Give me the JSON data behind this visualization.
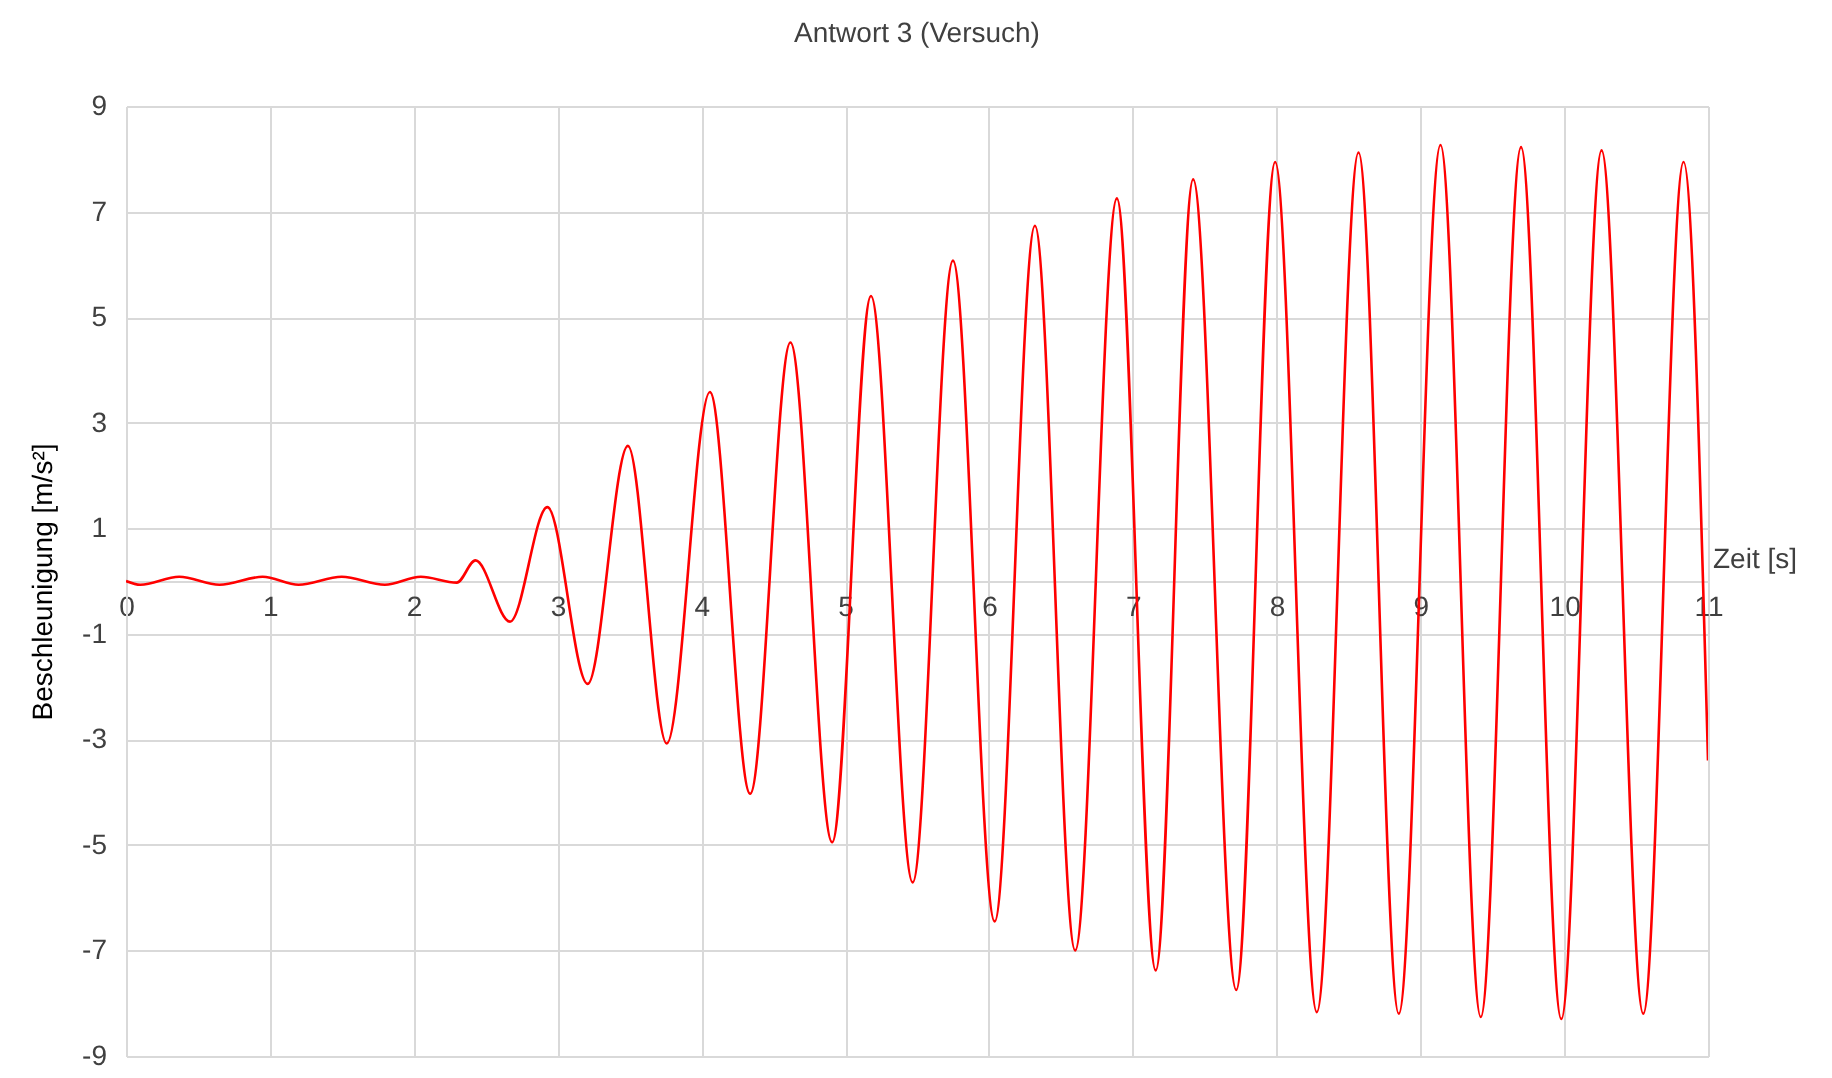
{
  "chart_data": {
    "type": "line",
    "title": "Antwort 3 (Versuch)",
    "xlabel": "Zeit [s]",
    "ylabel": "Beschleunigung [m/s²]",
    "x": [
      0,
      0.1,
      0.37,
      0.65,
      0.95,
      1.2,
      1.5,
      1.8,
      2.05,
      2.3,
      2.43,
      2.67,
      2.93,
      3.21,
      3.49,
      3.76,
      4.06,
      4.34,
      4.62,
      4.91,
      5.18,
      5.47,
      5.75,
      6.04,
      6.32,
      6.6,
      6.89,
      7.16,
      7.42,
      7.72,
      7.99,
      8.28,
      8.57,
      8.85,
      9.14,
      9.42,
      9.7,
      9.98,
      10.26,
      10.55,
      10.83,
      11.0
    ],
    "series": [
      {
        "color": "#ff0000",
        "values": [
          0,
          -0.07,
          0.08,
          -0.07,
          0.08,
          -0.07,
          0.08,
          -0.07,
          0.08,
          -0.03,
          0.39,
          -0.77,
          1.4,
          -1.95,
          2.56,
          -3.08,
          3.58,
          -4.03,
          4.52,
          -4.95,
          5.4,
          -5.71,
          6.07,
          -6.45,
          6.73,
          -7.0,
          7.25,
          -7.38,
          7.61,
          -7.75,
          7.94,
          -8.17,
          8.12,
          -8.2,
          8.26,
          -8.26,
          8.22,
          -8.3,
          8.16,
          -8.2,
          7.94,
          -3.4
        ]
      }
    ],
    "xlim": [
      0,
      11
    ],
    "xticks": [
      0,
      1,
      2,
      3,
      4,
      5,
      6,
      7,
      8,
      9,
      10,
      11
    ],
    "ylim": [
      -9,
      9
    ],
    "yticks": [
      -9,
      -7,
      -5,
      -3,
      -1,
      1,
      3,
      5,
      7,
      9
    ],
    "grid": true
  }
}
